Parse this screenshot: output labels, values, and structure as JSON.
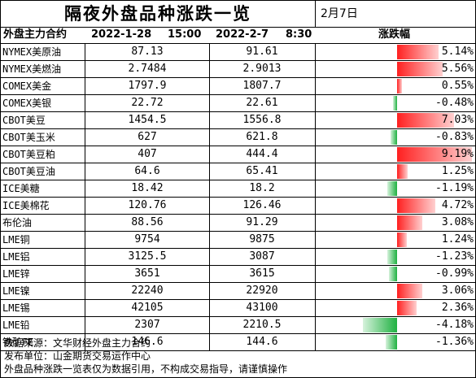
{
  "title": "隔夜外盘品种涨跌一览",
  "date": "2月7日",
  "header": {
    "contract": "外盘主力合约",
    "date1": "2022-1-28",
    "time1": "15:00",
    "date2": "2022-2-7",
    "time2": "8:30",
    "change": "涨跌幅"
  },
  "colors": {
    "up": "#ff2020",
    "down": "#1fb141"
  },
  "rows": [
    {
      "name": "NYMEX美原油",
      "v1": "87.13",
      "v2": "91.61",
      "chg": "5.14%",
      "pct": 5.14
    },
    {
      "name": "NYMEX美燃油",
      "v1": "2.7484",
      "v2": "2.9013",
      "chg": "5.56%",
      "pct": 5.56
    },
    {
      "name": "COMEX美金",
      "v1": "1797.9",
      "v2": "1807.7",
      "chg": "0.55%",
      "pct": 0.55
    },
    {
      "name": "COMEX美银",
      "v1": "22.72",
      "v2": "22.61",
      "chg": "-0.48%",
      "pct": -0.48
    },
    {
      "name": "CBOT美豆",
      "v1": "1454.5",
      "v2": "1556.8",
      "chg": "7.03%",
      "pct": 7.03
    },
    {
      "name": "CBOT美玉米",
      "v1": "627",
      "v2": "621.8",
      "chg": "-0.83%",
      "pct": -0.83
    },
    {
      "name": "CBOT美豆粕",
      "v1": "407",
      "v2": "444.4",
      "chg": "9.19%",
      "pct": 9.19
    },
    {
      "name": "CBOT美豆油",
      "v1": "64.6",
      "v2": "65.41",
      "chg": "1.25%",
      "pct": 1.25
    },
    {
      "name": "ICE美糖",
      "v1": "18.42",
      "v2": "18.2",
      "chg": "-1.19%",
      "pct": -1.19
    },
    {
      "name": "ICE美棉花",
      "v1": "120.76",
      "v2": "126.46",
      "chg": "4.72%",
      "pct": 4.72
    },
    {
      "name": "布伦油",
      "v1": "88.56",
      "v2": "91.29",
      "chg": "3.08%",
      "pct": 3.08
    },
    {
      "name": "LME铜",
      "v1": "9754",
      "v2": "9875",
      "chg": "1.24%",
      "pct": 1.24
    },
    {
      "name": "LME铝",
      "v1": "3125.5",
      "v2": "3087",
      "chg": "-1.23%",
      "pct": -1.23
    },
    {
      "name": "LME锌",
      "v1": "3651",
      "v2": "3615",
      "chg": "-0.99%",
      "pct": -0.99
    },
    {
      "name": "LME镍",
      "v1": "22240",
      "v2": "22920",
      "chg": "3.06%",
      "pct": 3.06
    },
    {
      "name": "LME锡",
      "v1": "42105",
      "v2": "43100",
      "chg": "2.36%",
      "pct": 2.36
    },
    {
      "name": "LME铅",
      "v1": "2307",
      "v2": "2210.5",
      "chg": "-4.18%",
      "pct": -4.18
    },
    {
      "name": "铁矿FE",
      "v1": "146.6",
      "v2": "144.6",
      "chg": "-1.36%",
      "pct": -1.36
    }
  ],
  "footer": {
    "source": "数据来源：文华财经外盘主力合约",
    "publisher": "发布单位：山金期货交易运作中心",
    "disclaimer": "外盘品种涨跌一览表仅为数据引用，不构成交易指导，请谨慎操作"
  }
}
